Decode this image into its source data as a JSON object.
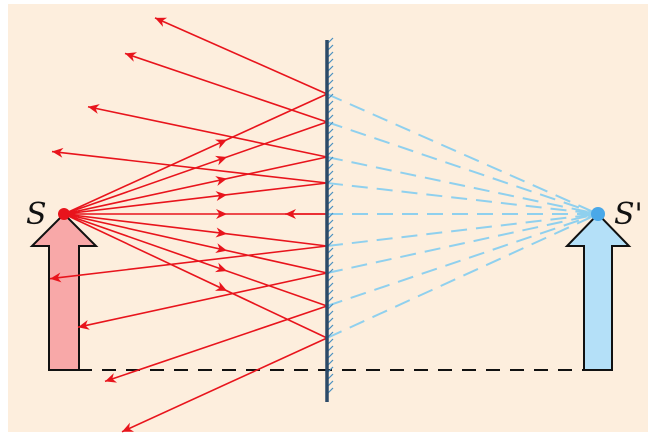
{
  "labels": {
    "object": "S",
    "image": "S'"
  },
  "colors": {
    "background": "#fdeedd",
    "incident_ray": "#e8141c",
    "virtual_ray": "#8fd0ee",
    "object_arrow_fill": "#f8a8a8",
    "image_arrow_fill": "#b4e0f8",
    "mirror": "#2c4a68",
    "mirror_hatch": "#4a90c0",
    "baseline": "#111111"
  },
  "icons": {
    "object_point": "red-dot-icon",
    "image_point": "blue-dot-icon",
    "object_arrow": "up-arrow-icon",
    "image_arrow": "up-arrow-icon"
  }
}
